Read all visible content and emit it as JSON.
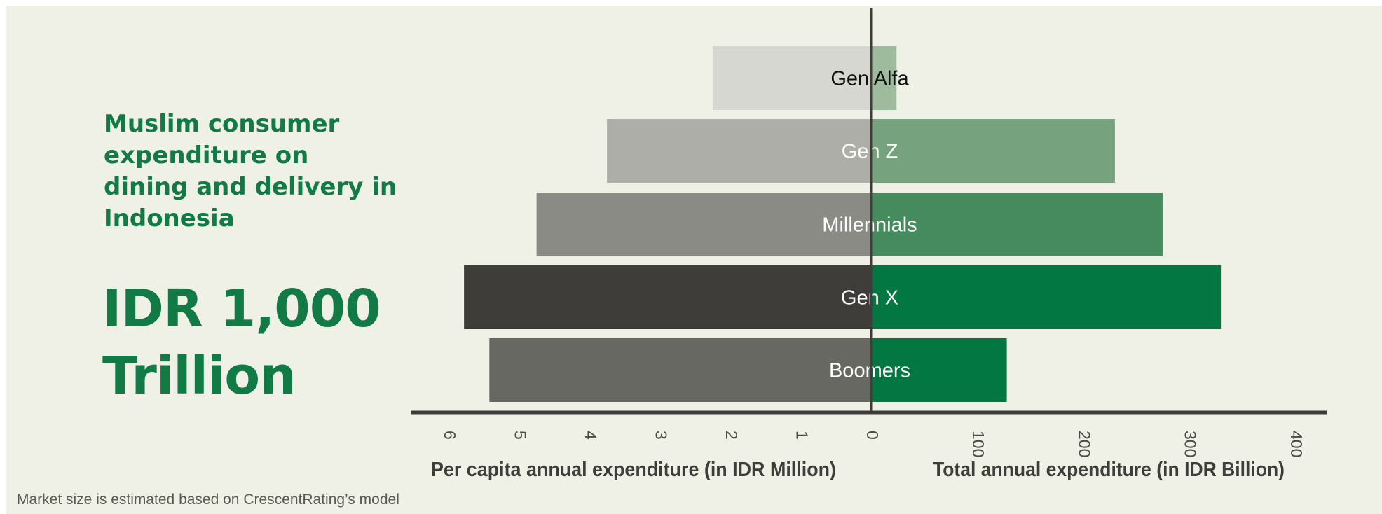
{
  "headline": {
    "title": "Muslim consumer expenditure on dining and delivery in Indonesia",
    "total": "IDR 1,000 Trillion"
  },
  "footnote": "Market size is estimated based on CrescentRating’s model",
  "chart_data": {
    "type": "bar",
    "orientation": "horizontal-butterfly",
    "categories": [
      "Gen Alfa",
      "Gen Z",
      "Millennials",
      "Gen X",
      "Boomers"
    ],
    "series": [
      {
        "side": "left",
        "values": [
          2.25,
          3.75,
          4.75,
          5.78,
          5.42
        ],
        "colors": [
          "#d6d7d1",
          "#adaea8",
          "#8b8b85",
          "#3e3d39",
          "#686863"
        ]
      },
      {
        "side": "right",
        "values": [
          24,
          230,
          275,
          330,
          128
        ],
        "colors": [
          "#9fbb9d",
          "#76a27d",
          "#468b5e",
          "#037742",
          "#037742"
        ]
      }
    ],
    "label_colors": [
      "#111111",
      "#ffffff",
      "#ffffff",
      "#ffffff",
      "#ffffff"
    ],
    "left_axis": {
      "label": "Per capita annual expenditure (in IDR Million)",
      "range": [
        0,
        6
      ],
      "ticks": [
        "6",
        "5",
        "4",
        "3",
        "2",
        "1",
        "0"
      ]
    },
    "right_axis": {
      "label": "Total annual expenditure (in IDR Billion)",
      "range": [
        0,
        400
      ],
      "ticks": [
        "100",
        "200",
        "300",
        "400"
      ]
    }
  }
}
